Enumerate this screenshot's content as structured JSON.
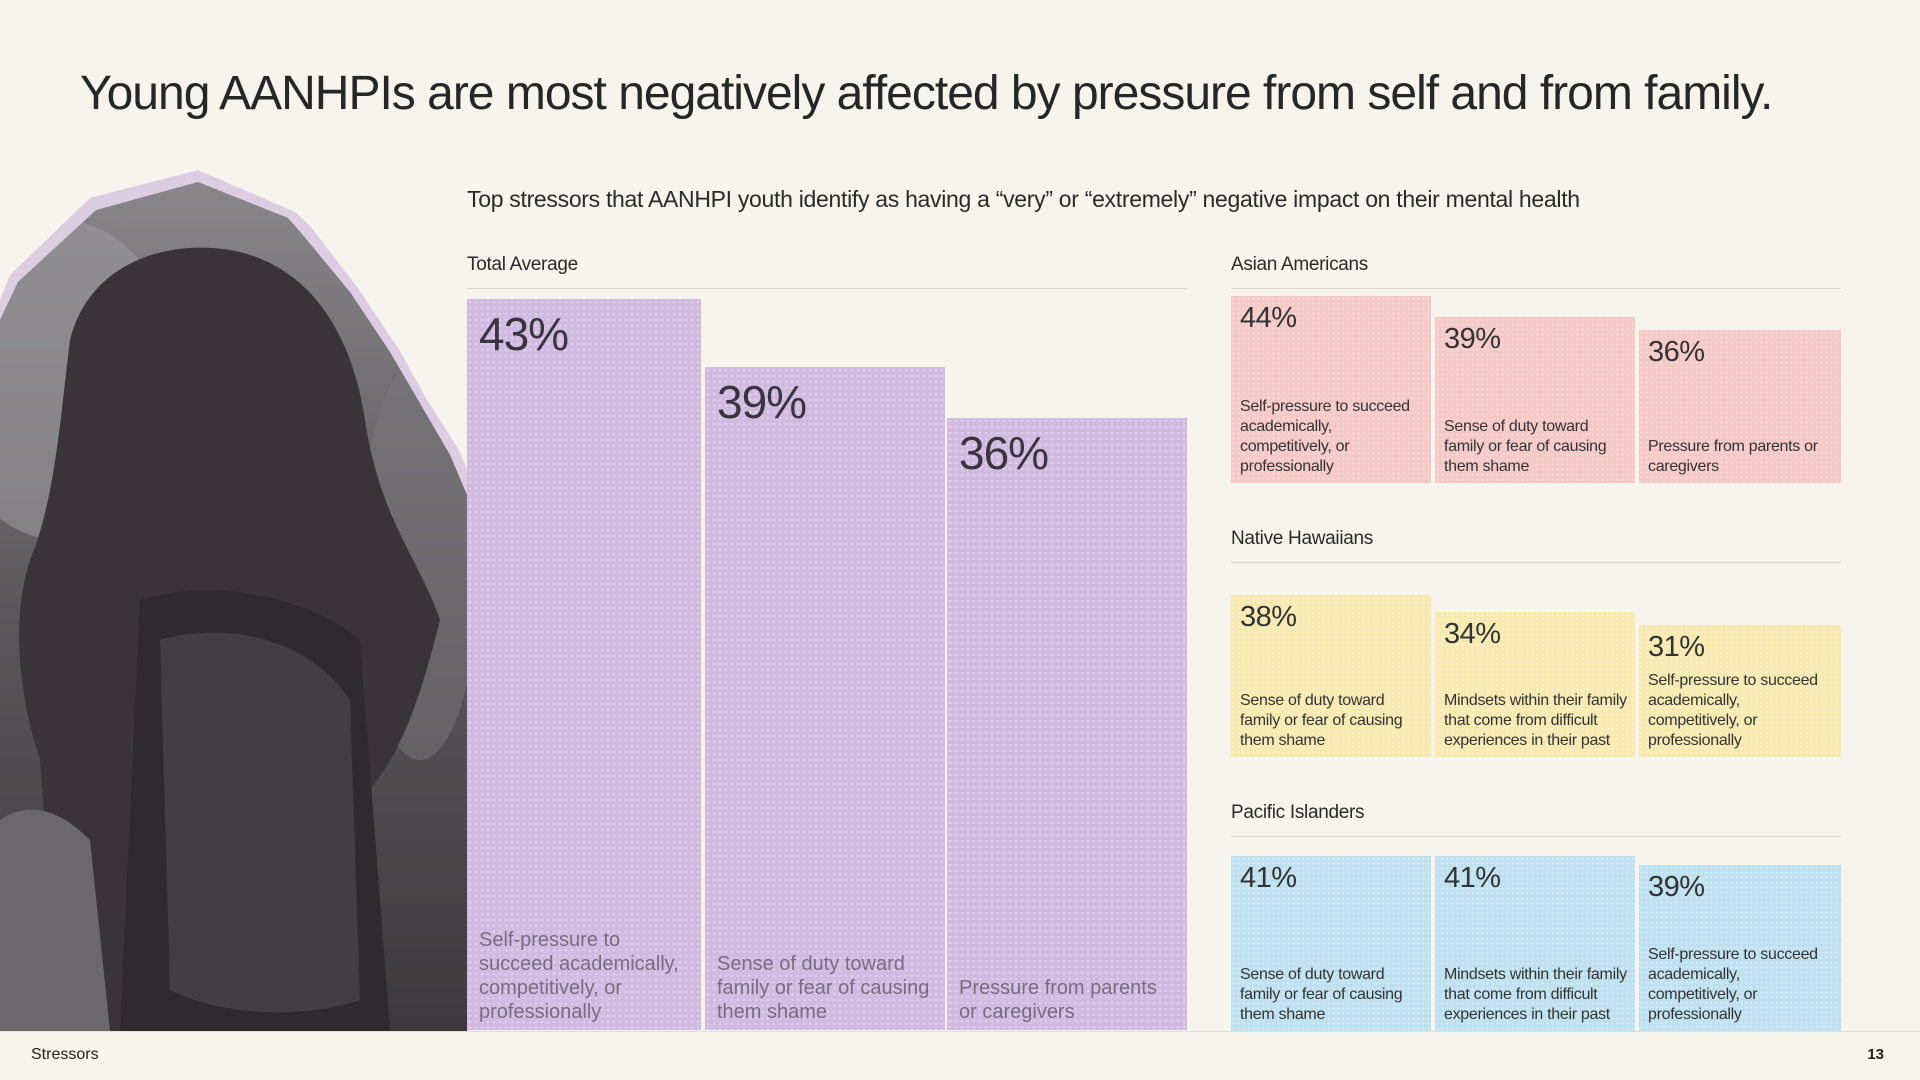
{
  "header": {
    "title": "Young AANHPIs are most negatively affected by pressure from self and from family.",
    "subtitle": "Top stressors that AANHPI youth identify as having a “very” or “extremely” negative impact on their mental health"
  },
  "colors": {
    "total": "#d2bbe0",
    "asian_americans": "#f5c9c6",
    "native_hawaiians": "#f7eab1",
    "pacific_islanders": "#bfe1ef"
  },
  "chart_data": [
    {
      "type": "bar",
      "title": "Total Average",
      "categories": [
        "Self-pressure to succeed academically, competitively, or professionally",
        "Sense of duty toward family or fear of causing them shame",
        "Pressure from parents or caregivers"
      ],
      "values": [
        43,
        39,
        36
      ],
      "labels": [
        "43%",
        "39%",
        "36%"
      ],
      "ylim": [
        0,
        50
      ]
    },
    {
      "type": "bar",
      "title": "Asian Americans",
      "categories": [
        "Self-pressure to succeed academically, competitively, or professionally",
        "Sense of duty toward family or fear of causing them shame",
        "Pressure from parents or caregivers"
      ],
      "values": [
        44,
        39,
        36
      ],
      "labels": [
        "44%",
        "39%",
        "36%"
      ],
      "ylim": [
        0,
        50
      ]
    },
    {
      "type": "bar",
      "title": "Native Hawaiians",
      "categories": [
        "Sense of duty toward family or fear of causing them shame",
        "Mindsets within their family that come from difficult experiences in their past",
        "Self-pressure to succeed academically, competitively, or professionally"
      ],
      "values": [
        38,
        34,
        31
      ],
      "labels": [
        "38%",
        "34%",
        "31%"
      ],
      "ylim": [
        0,
        50
      ]
    },
    {
      "type": "bar",
      "title": "Pacific Islanders",
      "categories": [
        "Sense of duty toward family or fear of causing them shame",
        "Mindsets within their family that come from difficult experiences in their past",
        "Self-pressure to succeed academically, competitively, or professionally"
      ],
      "values": [
        41,
        41,
        39
      ],
      "labels": [
        "41%",
        "41%",
        "39%"
      ],
      "ylim": [
        0,
        50
      ]
    }
  ],
  "footer": {
    "section": "Stressors",
    "page_number": "13"
  }
}
